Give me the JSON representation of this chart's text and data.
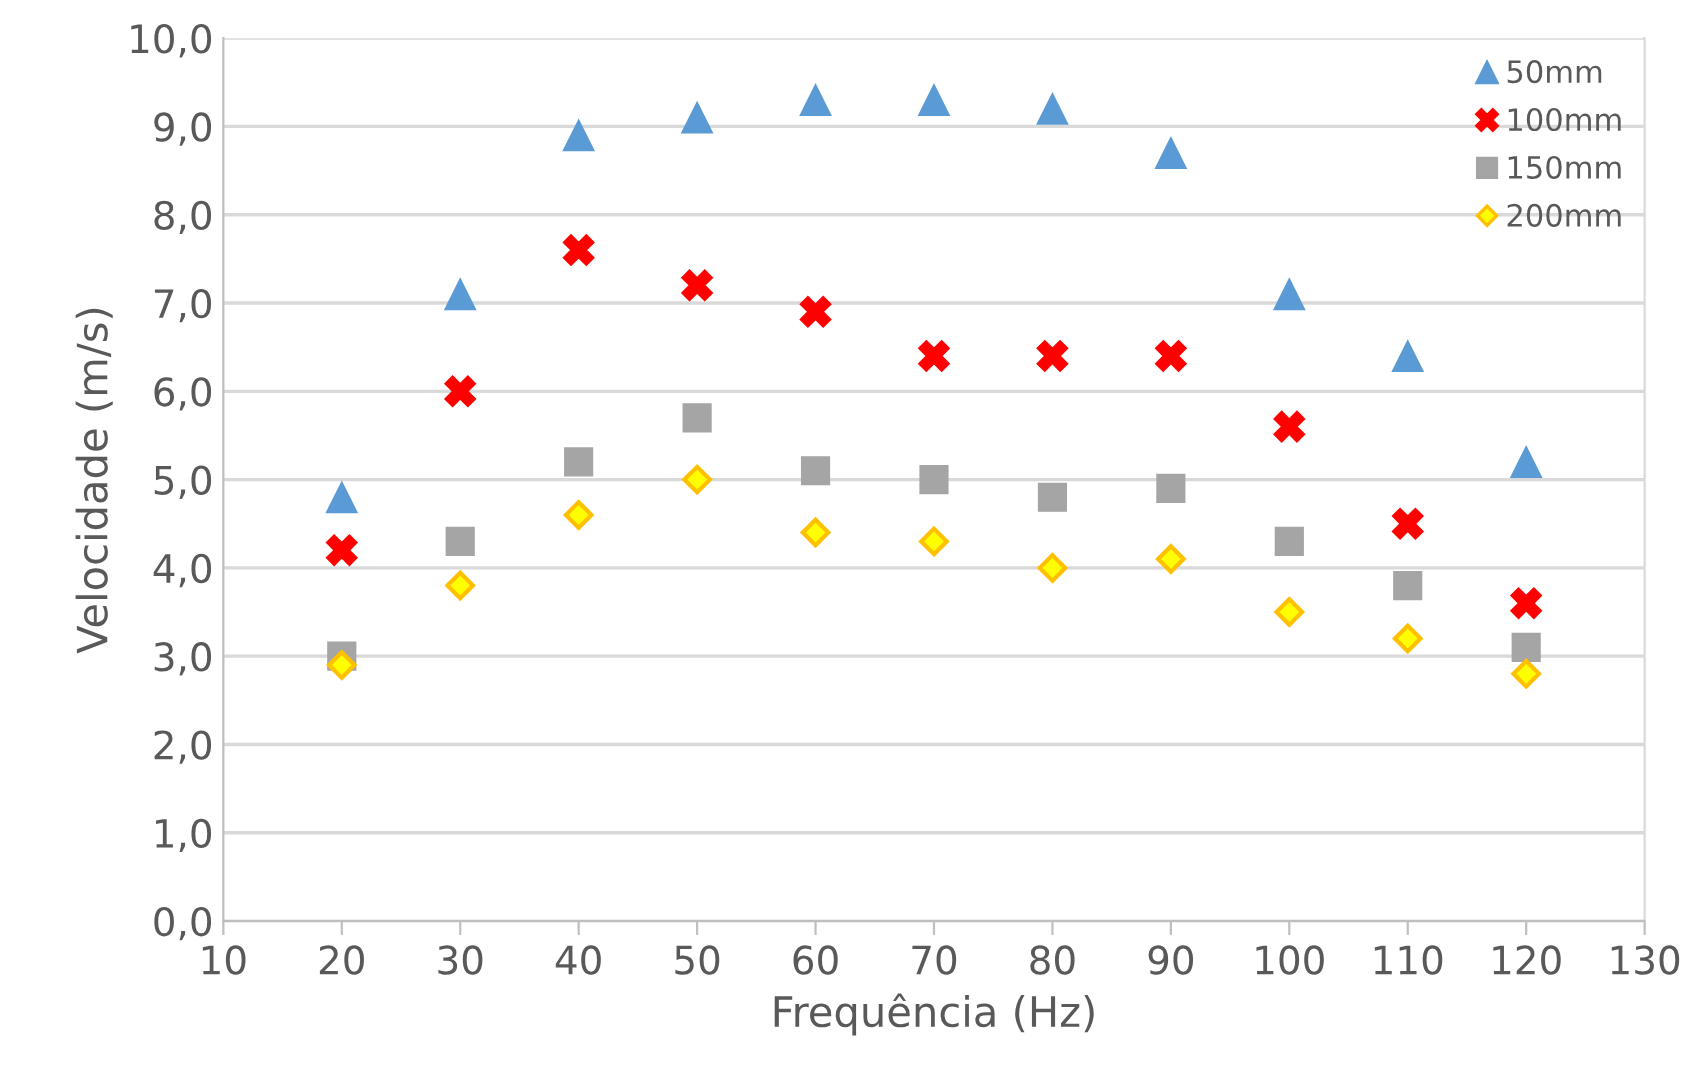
{
  "chart_data": {
    "type": "scatter",
    "xlabel": "Frequência (Hz)",
    "ylabel": "Velocidade (m/s)",
    "x": [
      20,
      30,
      40,
      50,
      60,
      70,
      80,
      90,
      100,
      110,
      120
    ],
    "series": [
      {
        "name": "50mm",
        "color": "#5b9bd5",
        "marker": "triangle",
        "values": [
          4.8,
          7.1,
          8.9,
          9.1,
          9.3,
          9.3,
          9.2,
          8.7,
          7.1,
          6.4,
          5.2
        ]
      },
      {
        "name": "100mm",
        "color": "#ff0000",
        "marker": "cross",
        "values": [
          4.2,
          6.0,
          7.6,
          7.2,
          6.9,
          6.4,
          6.4,
          6.4,
          5.6,
          4.5,
          3.6
        ]
      },
      {
        "name": "150mm",
        "color": "#a5a5a5",
        "marker": "square",
        "values": [
          3.0,
          4.3,
          5.2,
          5.7,
          5.1,
          5.0,
          4.8,
          4.9,
          4.3,
          3.8,
          3.1
        ]
      },
      {
        "name": "200mm",
        "color": "#ffff00",
        "marker": "diamond",
        "values": [
          2.9,
          3.8,
          4.6,
          5.0,
          4.4,
          4.3,
          4.0,
          4.1,
          3.5,
          3.2,
          2.8
        ]
      }
    ],
    "xlim": [
      10,
      130
    ],
    "xticks": [
      10,
      20,
      30,
      40,
      50,
      60,
      70,
      80,
      90,
      100,
      110,
      120,
      130
    ],
    "ylim": [
      0,
      10
    ],
    "yticks": [
      {
        "value": 0,
        "label": "0,0"
      },
      {
        "value": 1,
        "label": "1,0"
      },
      {
        "value": 2,
        "label": "2,0"
      },
      {
        "value": 3,
        "label": "3,0"
      },
      {
        "value": 4,
        "label": "4,0"
      },
      {
        "value": 5,
        "label": "5,0"
      },
      {
        "value": 6,
        "label": "6,0"
      },
      {
        "value": 7,
        "label": "7,0"
      },
      {
        "value": 8,
        "label": "8,0"
      },
      {
        "value": 9,
        "label": "9,0"
      },
      {
        "value": 10,
        "label": "10,0"
      }
    ],
    "grid": "y",
    "legend": "top right"
  }
}
